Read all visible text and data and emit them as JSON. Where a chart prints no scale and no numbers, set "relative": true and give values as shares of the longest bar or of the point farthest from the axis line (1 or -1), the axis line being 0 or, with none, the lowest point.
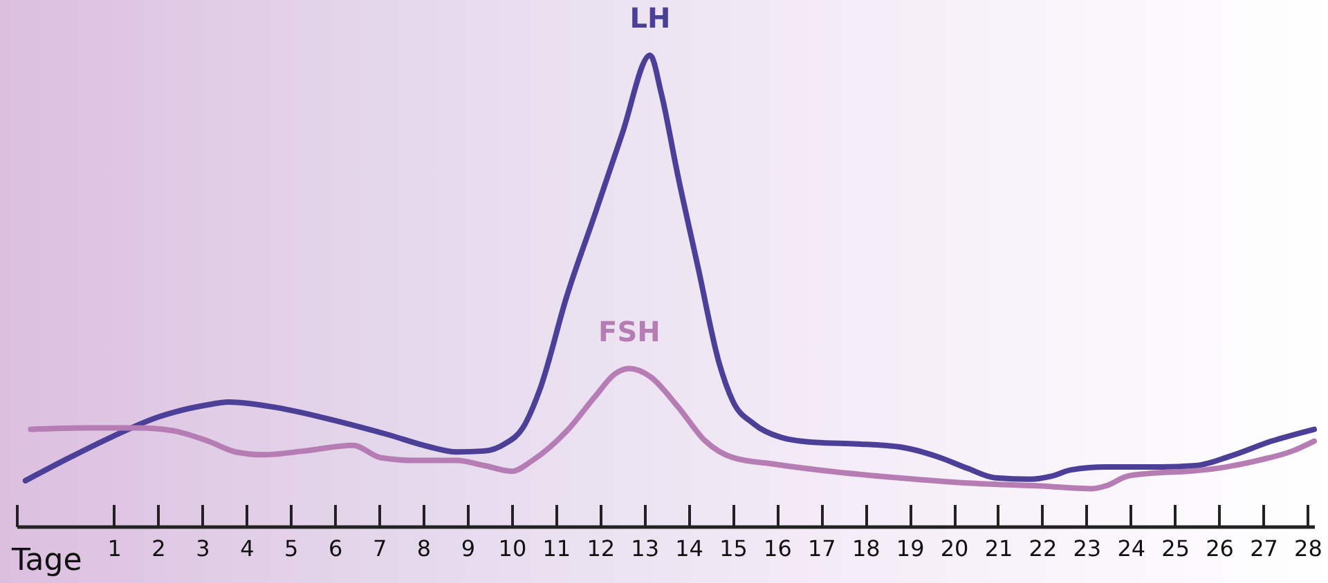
{
  "chart_data": {
    "type": "line",
    "xlabel": "Tage",
    "relative": true,
    "xlim": [
      -1.2,
      28.15
    ],
    "xticks": [
      {
        "value": -1.2,
        "label": null
      },
      1,
      2,
      3,
      4,
      5,
      6,
      7,
      8,
      9,
      10,
      11,
      12,
      13,
      14,
      15,
      16,
      17,
      18,
      19,
      20,
      21,
      22,
      23,
      24,
      25,
      26,
      27,
      28
    ],
    "series": [
      {
        "name": "LH",
        "color": "#4b3f98",
        "x": [
          -1.0,
          0.0,
          1.0,
          2.0,
          3.13,
          3.59,
          4.69,
          5.94,
          7.19,
          8.13,
          8.75,
          9.38,
          9.84,
          10.25,
          10.63,
          11.25,
          11.88,
          12.5,
          13.13,
          13.38,
          13.75,
          14.22,
          14.69,
          15.0,
          15.47,
          16.09,
          16.88,
          17.81,
          18.75,
          19.69,
          20.31,
          20.94,
          21.72,
          22.19,
          22.66,
          23.44,
          24.69,
          25.47,
          26.25,
          27.19,
          28.15
        ],
        "values": [
          0.097,
          0.146,
          0.192,
          0.232,
          0.258,
          0.264,
          0.252,
          0.226,
          0.195,
          0.169,
          0.158,
          0.16,
          0.175,
          0.209,
          0.289,
          0.49,
          0.662,
          0.834,
          1,
          0.92,
          0.748,
          0.547,
          0.347,
          0.266,
          0.218,
          0.189,
          0.178,
          0.175,
          0.169,
          0.146,
          0.123,
          0.103,
          0.1,
          0.106,
          0.12,
          0.126,
          0.126,
          0.129,
          0.149,
          0.181,
          0.206
        ]
      },
      {
        "name": "FSH",
        "color": "#b67db5",
        "x": [
          -0.88,
          0.31,
          1.56,
          2.34,
          3.13,
          3.75,
          4.38,
          5.31,
          6.41,
          7.03,
          7.81,
          8.75,
          9.38,
          10.0,
          10.47,
          11.25,
          11.88,
          12.34,
          12.66,
          13.13,
          13.75,
          14.38,
          15.0,
          15.94,
          17.19,
          18.75,
          20.31,
          21.88,
          23.13,
          23.44,
          23.91,
          24.38,
          25.31,
          25.94,
          26.88,
          27.66,
          28.15
        ],
        "values": [
          0.206,
          0.209,
          0.209,
          0.203,
          0.181,
          0.158,
          0.152,
          0.16,
          0.172,
          0.146,
          0.14,
          0.14,
          0.129,
          0.117,
          0.14,
          0.203,
          0.275,
          0.324,
          0.335,
          0.318,
          0.255,
          0.181,
          0.146,
          0.132,
          0.117,
          0.103,
          0.092,
          0.086,
          0.08,
          0.086,
          0.106,
          0.112,
          0.117,
          0.123,
          0.14,
          0.16,
          0.181
        ]
      }
    ]
  }
}
